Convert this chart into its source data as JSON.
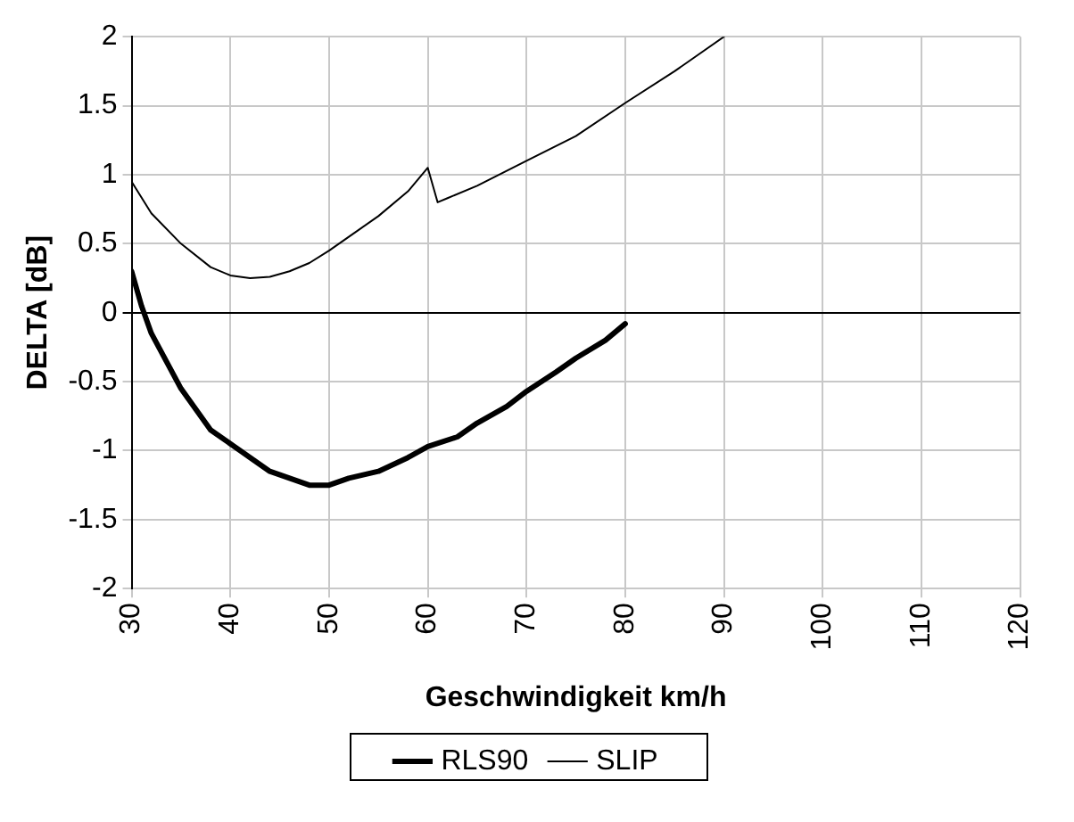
{
  "chart_data": {
    "type": "line",
    "xlabel": "Geschwindigkeit km/h",
    "ylabel": "DELTA [dB]",
    "xlim": [
      30,
      120
    ],
    "xticks": [
      30,
      40,
      50,
      60,
      70,
      80,
      90,
      100,
      110,
      120
    ],
    "ylim": [
      -2,
      2
    ],
    "yticks": [
      -2,
      -1.5,
      -1,
      -0.5,
      0,
      0.5,
      1,
      1.5,
      2
    ],
    "grid": true,
    "legend": "bottom",
    "marker": "none",
    "series": [
      {
        "name": "RLS90",
        "color": "#000000",
        "x": [
          30,
          31,
          32,
          35,
          38,
          40,
          42,
          44,
          46,
          48,
          50,
          52,
          55,
          58,
          60,
          63,
          65,
          68,
          70,
          73,
          75,
          78,
          80
        ],
        "values": [
          0.3,
          0.05,
          -0.15,
          -0.55,
          -0.85,
          -0.95,
          -1.05,
          -1.15,
          -1.2,
          -1.25,
          -1.25,
          -1.2,
          -1.15,
          -1.05,
          -0.97,
          -0.9,
          -0.8,
          -0.68,
          -0.57,
          -0.43,
          -0.33,
          -0.2,
          -0.08
        ]
      },
      {
        "name": "SLIP",
        "color": "#000000",
        "x": [
          30,
          32,
          35,
          38,
          40,
          42,
          44,
          46,
          48,
          50,
          53,
          55,
          58,
          60,
          61,
          62,
          65,
          70,
          75,
          80,
          85,
          90
        ],
        "values": [
          0.95,
          0.72,
          0.5,
          0.33,
          0.27,
          0.25,
          0.26,
          0.3,
          0.36,
          0.45,
          0.6,
          0.7,
          0.88,
          1.05,
          0.8,
          0.83,
          0.92,
          1.1,
          1.28,
          1.52,
          1.75,
          2.0
        ]
      }
    ]
  }
}
